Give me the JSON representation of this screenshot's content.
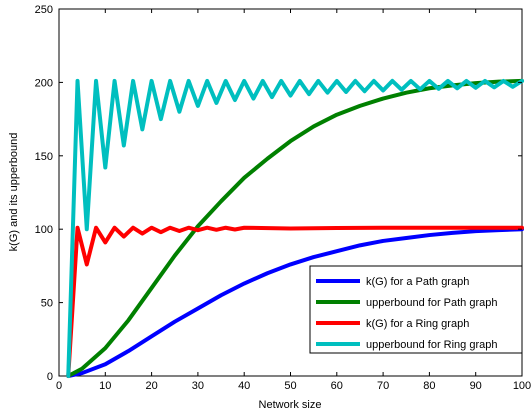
{
  "chart_data": {
    "type": "line",
    "title": "",
    "xlabel": "Network size",
    "ylabel": "k(G) and its upperbound",
    "xlim": [
      0,
      100
    ],
    "ylim": [
      0,
      250
    ],
    "xticks": [
      0,
      10,
      20,
      30,
      40,
      50,
      60,
      70,
      80,
      90,
      100
    ],
    "yticks": [
      0,
      50,
      100,
      150,
      200,
      250
    ],
    "grid": false,
    "legend_position": "bottom-right",
    "series": [
      {
        "name": "k(G) for a Path graph",
        "color": "#0000ff",
        "x": [
          2,
          5,
          10,
          15,
          20,
          25,
          30,
          35,
          40,
          45,
          50,
          55,
          60,
          65,
          70,
          75,
          80,
          85,
          90,
          95,
          100
        ],
        "y": [
          0,
          2,
          8,
          17,
          27,
          37,
          46,
          55,
          63,
          70,
          76,
          81,
          85,
          89,
          92,
          94,
          96,
          97.5,
          98.7,
          99.4,
          100
        ]
      },
      {
        "name": "upperbound for Path graph",
        "color": "#008000",
        "x": [
          2,
          5,
          10,
          15,
          20,
          25,
          30,
          35,
          40,
          45,
          50,
          55,
          60,
          65,
          70,
          75,
          80,
          85,
          90,
          95,
          100
        ],
        "y": [
          0,
          5,
          19,
          38,
          60,
          82,
          102,
          119,
          135,
          148,
          160,
          170,
          178,
          184,
          189,
          193,
          196,
          198,
          199.5,
          200.5,
          201
        ]
      },
      {
        "name": "k(G) for a Ring graph",
        "color": "#ff0000",
        "x": [
          2,
          4,
          6,
          8,
          10,
          12,
          14,
          16,
          18,
          20,
          22,
          24,
          26,
          28,
          30,
          32,
          34,
          36,
          38,
          40,
          50,
          60,
          70,
          80,
          90,
          100
        ],
        "y": [
          0,
          101,
          76,
          101,
          91,
          101,
          95,
          101,
          97,
          101,
          98,
          101,
          98.8,
          101,
          99.3,
          101,
          99.6,
          101,
          99.8,
          101,
          100.5,
          100.8,
          101,
          101,
          101,
          101
        ]
      },
      {
        "name": "upperbound for Ring graph",
        "color": "#00bfbf",
        "x": [
          2,
          4,
          6,
          8,
          10,
          12,
          14,
          16,
          18,
          20,
          22,
          24,
          26,
          28,
          30,
          32,
          34,
          36,
          38,
          40,
          42,
          44,
          46,
          48,
          50,
          52,
          54,
          56,
          58,
          60,
          62,
          64,
          66,
          68,
          70,
          72,
          74,
          76,
          78,
          80,
          82,
          84,
          86,
          88,
          90,
          92,
          94,
          96,
          98,
          100
        ],
        "y": [
          0,
          201,
          100,
          201,
          142,
          201,
          157,
          201,
          168,
          201,
          175,
          201,
          180,
          201,
          184,
          201,
          186,
          201,
          188,
          201,
          189,
          201,
          190,
          201,
          191,
          201,
          192,
          201,
          193,
          201,
          193.5,
          201,
          194,
          201,
          194.5,
          201,
          195,
          201,
          195.3,
          201,
          195.6,
          201,
          196,
          201,
          196.3,
          201,
          196.6,
          201,
          197,
          201
        ]
      }
    ]
  }
}
